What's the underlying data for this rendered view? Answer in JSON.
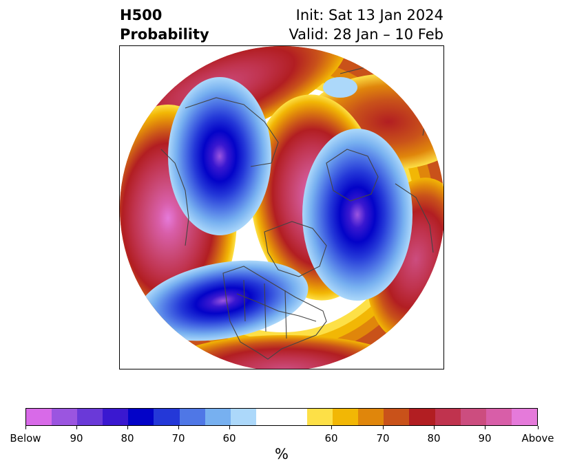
{
  "header": {
    "title_line1": "H500",
    "title_line2": "Probability",
    "init": "Init: Sat 13 Jan 2024",
    "valid": "Valid: 28 Jan – 10 Feb"
  },
  "colorbar": {
    "unit": "%",
    "colors": [
      "#d86ae8",
      "#9b55e0",
      "#6a39d8",
      "#3a18d0",
      "#0303c8",
      "#2438d8",
      "#4f77e6",
      "#77b0f0",
      "#acd8fa",
      "#ffffff",
      "#fde047",
      "#f2b705",
      "#e0860b",
      "#c9521a",
      "#b21e22",
      "#c0334e",
      "#cc4d7f",
      "#d85ea8",
      "#e57ada"
    ],
    "tick_labels": [
      "Below",
      "90",
      "80",
      "70",
      "60",
      "60",
      "70",
      "80",
      "90",
      "Above"
    ]
  }
}
